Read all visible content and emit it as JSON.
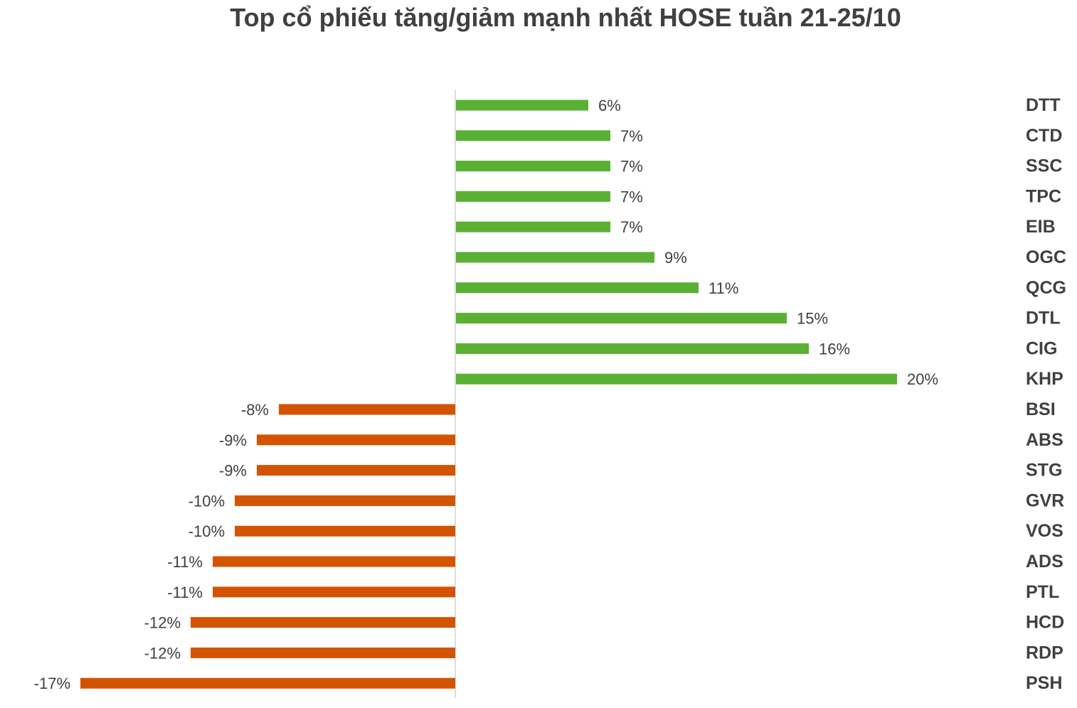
{
  "chart_data": {
    "type": "bar",
    "orientation": "horizontal",
    "title": "Top cổ phiếu tăng/giảm mạnh nhất HOSE tuần 21-25/10",
    "xlabel": "",
    "ylabel": "",
    "xlim": [
      -17,
      20
    ],
    "grid": false,
    "legend": "none",
    "category_labels_position": "right",
    "colors": {
      "positive": "#5AB033",
      "negative": "#D35400",
      "axis": "#C8C8C8",
      "text": "#404040"
    },
    "categories": [
      "DTT",
      "CTD",
      "SSC",
      "TPC",
      "EIB",
      "OGC",
      "QCG",
      "DTL",
      "CIG",
      "KHP",
      "BSI",
      "ABS",
      "STG",
      "GVR",
      "VOS",
      "ADS",
      "PTL",
      "HCD",
      "RDP",
      "PSH"
    ],
    "values": [
      6,
      7,
      7,
      7,
      7,
      9,
      11,
      15,
      16,
      20,
      -8,
      -9,
      -9,
      -10,
      -10,
      -11,
      -11,
      -12,
      -12,
      -17
    ],
    "labels": [
      "6%",
      "7%",
      "7%",
      "7%",
      "7%",
      "9%",
      "11%",
      "15%",
      "16%",
      "20%",
      "-8%",
      "-9%",
      "-9%",
      "-10%",
      "-10%",
      "-11%",
      "-11%",
      "-12%",
      "-12%",
      "-17%"
    ]
  }
}
